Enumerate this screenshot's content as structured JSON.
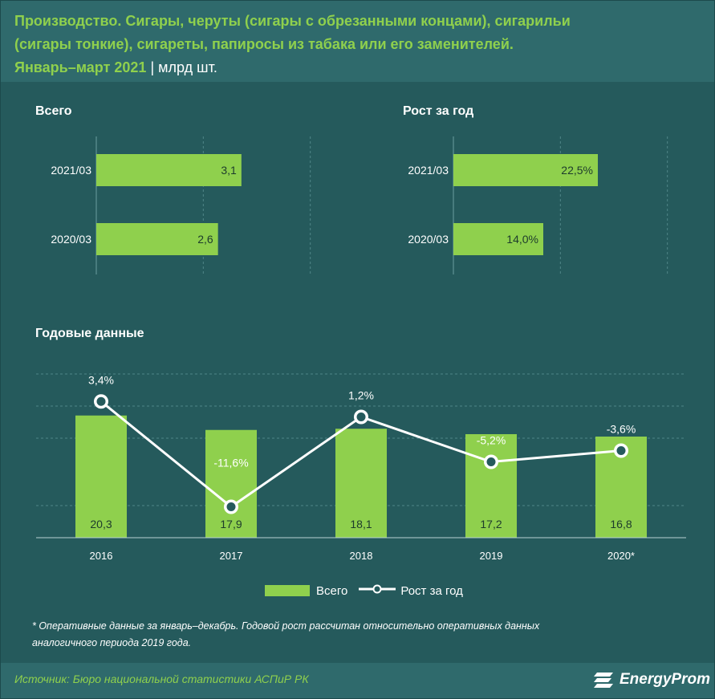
{
  "header": {
    "title_line1": "Производство. Сигары, черуты (сигары с обрезанными концами), сигарильи",
    "title_line2": "(сигары тонкие), сигареты, папиросы из табака или его заменителей.",
    "title_period": "Январь–март 2021",
    "title_separator": "|",
    "title_unit": "млрд шт."
  },
  "sections": {
    "total_label": "Всего",
    "growth_label": "Рост за год",
    "annual_label": "Годовые данные"
  },
  "colors": {
    "background": "#255a5c",
    "accent_green": "#8fd04d",
    "white": "#ffffff"
  },
  "chart_data": [
    {
      "type": "bar",
      "orientation": "horizontal",
      "title": "Всего",
      "categories": [
        "2021/03",
        "2020/03"
      ],
      "values": [
        3.1,
        2.6
      ],
      "value_labels": [
        "3,1",
        "2,6"
      ],
      "xlim": [
        0,
        4.8
      ]
    },
    {
      "type": "bar",
      "orientation": "horizontal",
      "title": "Рост за год",
      "categories": [
        "2021/03",
        "2020/03"
      ],
      "values": [
        22.5,
        14.0
      ],
      "value_labels": [
        "22,5%",
        "14,0%"
      ],
      "xlim": [
        0,
        35
      ]
    },
    {
      "type": "bar",
      "title": "Годовые данные",
      "categories": [
        "2016",
        "2017",
        "2018",
        "2019",
        "2020*"
      ],
      "series": [
        {
          "name": "Всего",
          "values": [
            20.3,
            17.9,
            18.1,
            17.2,
            16.8
          ],
          "value_labels": [
            "20,3",
            "17,9",
            "18,1",
            "17,2",
            "16,8"
          ]
        },
        {
          "name": "Рост за год",
          "type": "line",
          "values": [
            3.4,
            -11.6,
            1.2,
            -5.2,
            -3.6
          ],
          "value_labels": [
            "3,4%",
            "-11,6%",
            "1,2%",
            "-5,2%",
            "-3,6%"
          ]
        }
      ],
      "ylim_bars": [
        0,
        28
      ],
      "ylim_line": [
        -16,
        8
      ],
      "legend": [
        "Всего",
        "Рост за год"
      ]
    }
  ],
  "footnote_line1": "* Оперативные данные за январь–декабрь. Годовой рост рассчитан относительно оперативных данных",
  "footnote_line2": "аналогичного периода 2019 года.",
  "source": "Источник: Бюро национальной  статистики АСПиР РК",
  "brand": "EnergyProm"
}
